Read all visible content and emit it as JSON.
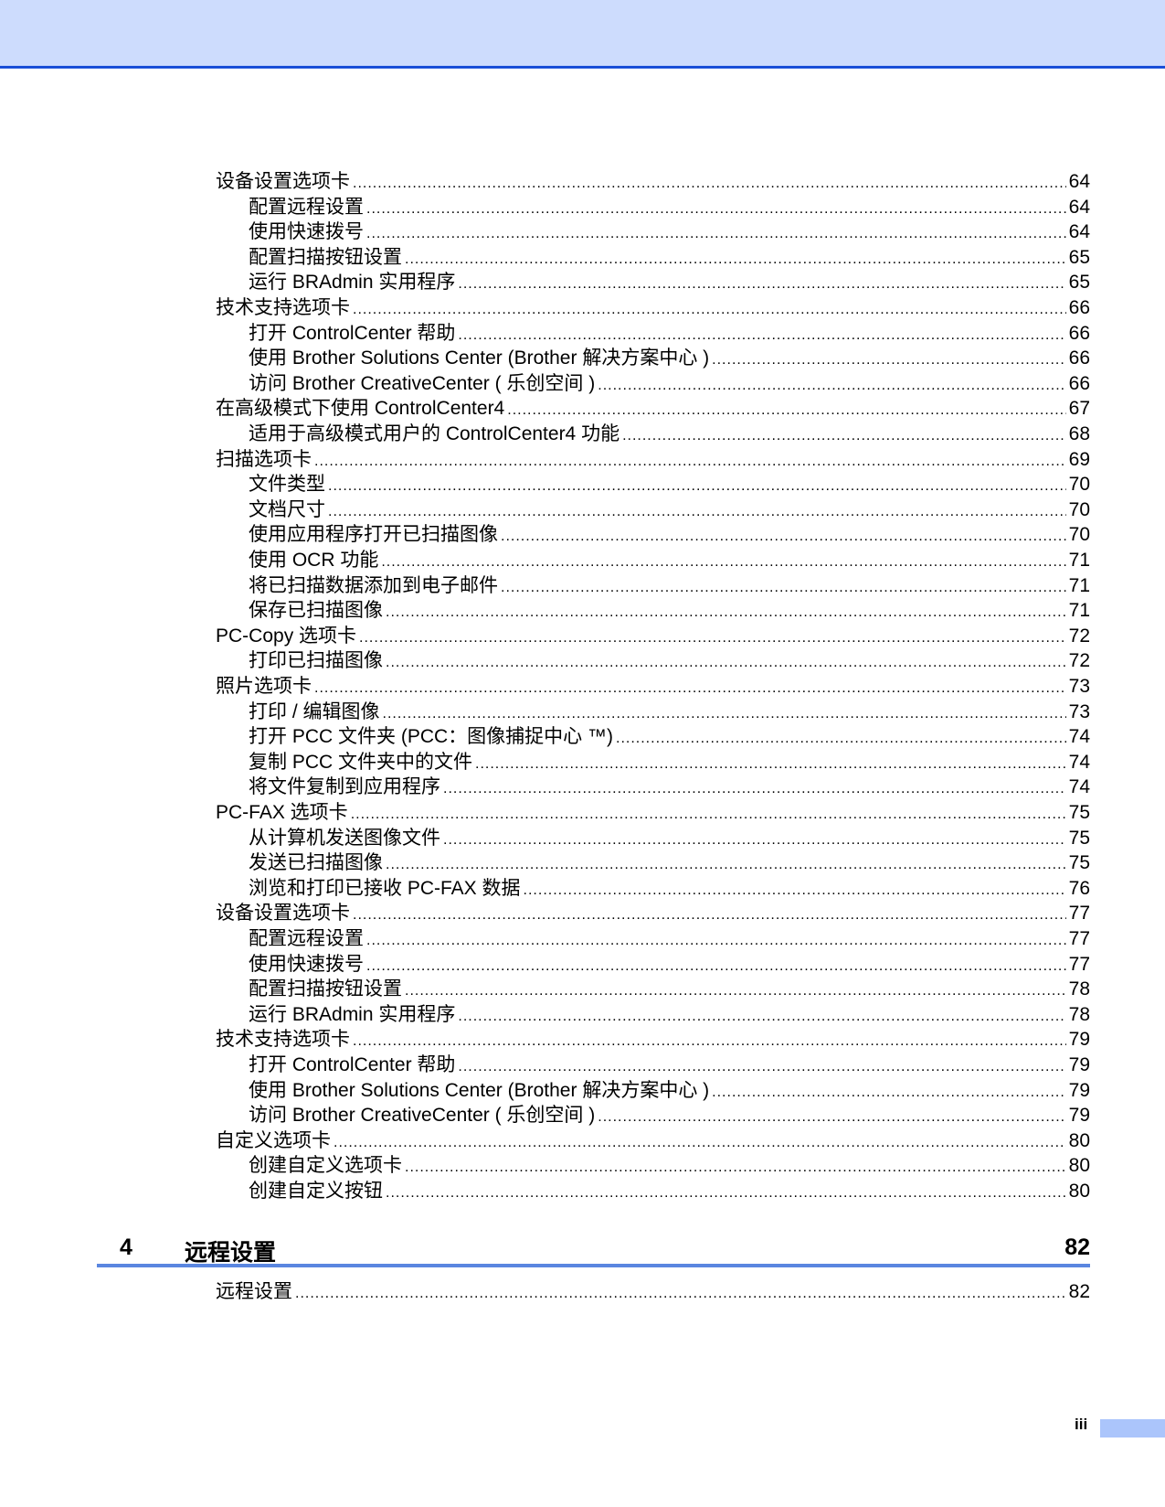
{
  "header_color": "#cddcfd",
  "accent_color": "#1a4fd8",
  "toc_entries": [
    {
      "level": 1,
      "title": "设备设置选项卡",
      "page": "64"
    },
    {
      "level": 2,
      "title": "配置远程设置",
      "page": "64"
    },
    {
      "level": 2,
      "title": "使用快速拨号",
      "page": "64"
    },
    {
      "level": 2,
      "title": "配置扫描按钮设置",
      "page": "65"
    },
    {
      "level": 2,
      "title": "运行 BRAdmin 实用程序",
      "page": "65"
    },
    {
      "level": 1,
      "title": "技术支持选项卡",
      "page": "66"
    },
    {
      "level": 2,
      "title": "打开 ControlCenter 帮助",
      "page": "66"
    },
    {
      "level": 2,
      "title": "使用 Brother Solutions Center (Brother 解决方案中心 )",
      "page": "66"
    },
    {
      "level": 2,
      "title": "访问 Brother CreativeCenter ( 乐创空间 )",
      "page": "66"
    },
    {
      "level": 1,
      "title": "在高级模式下使用 ControlCenter4",
      "page": "67"
    },
    {
      "level": 2,
      "title": "适用于高级模式用户的 ControlCenter4 功能",
      "page": "68"
    },
    {
      "level": 1,
      "title": "扫描选项卡",
      "page": "69"
    },
    {
      "level": 2,
      "title": "文件类型",
      "page": "70"
    },
    {
      "level": 2,
      "title": "文档尺寸",
      "page": "70"
    },
    {
      "level": 2,
      "title": "使用应用程序打开已扫描图像",
      "page": "70"
    },
    {
      "level": 2,
      "title": "使用 OCR 功能",
      "page": "71"
    },
    {
      "level": 2,
      "title": "将已扫描数据添加到电子邮件",
      "page": "71"
    },
    {
      "level": 2,
      "title": "保存已扫描图像",
      "page": "71"
    },
    {
      "level": 1,
      "title": "PC-Copy 选项卡",
      "page": "72"
    },
    {
      "level": 2,
      "title": "打印已扫描图像",
      "page": "72"
    },
    {
      "level": 1,
      "title": "照片选项卡",
      "page": "73"
    },
    {
      "level": 2,
      "title": "打印 / 编辑图像",
      "page": "73"
    },
    {
      "level": 2,
      "title": "打开 PCC 文件夹 (PCC：图像捕捉中心 ™)",
      "page": "74"
    },
    {
      "level": 2,
      "title": "复制 PCC 文件夹中的文件",
      "page": "74"
    },
    {
      "level": 2,
      "title": "将文件复制到应用程序",
      "page": "74"
    },
    {
      "level": 1,
      "title": "PC-FAX 选项卡",
      "page": "75"
    },
    {
      "level": 2,
      "title": "从计算机发送图像文件",
      "page": "75"
    },
    {
      "level": 2,
      "title": "发送已扫描图像",
      "page": "75"
    },
    {
      "level": 2,
      "title": "浏览和打印已接收 PC-FAX 数据",
      "page": "76"
    },
    {
      "level": 1,
      "title": "设备设置选项卡",
      "page": "77"
    },
    {
      "level": 2,
      "title": "配置远程设置",
      "page": "77"
    },
    {
      "level": 2,
      "title": "使用快速拨号",
      "page": "77"
    },
    {
      "level": 2,
      "title": "配置扫描按钮设置",
      "page": "78"
    },
    {
      "level": 2,
      "title": "运行 BRAdmin 实用程序",
      "page": "78"
    },
    {
      "level": 1,
      "title": "技术支持选项卡",
      "page": "79"
    },
    {
      "level": 2,
      "title": "打开 ControlCenter 帮助",
      "page": "79"
    },
    {
      "level": 2,
      "title": "使用 Brother Solutions Center (Brother 解决方案中心 )",
      "page": "79"
    },
    {
      "level": 2,
      "title": "访问 Brother CreativeCenter ( 乐创空间 )",
      "page": "79"
    },
    {
      "level": 1,
      "title": "自定义选项卡",
      "page": "80"
    },
    {
      "level": 2,
      "title": "创建自定义选项卡",
      "page": "80"
    },
    {
      "level": 2,
      "title": "创建自定义按钮",
      "page": "80"
    }
  ],
  "chapter": {
    "number": "4",
    "title": "远程设置",
    "page": "82",
    "entries": [
      {
        "level": 1,
        "title": "远程设置",
        "page": "82"
      }
    ]
  },
  "page_number": "iii"
}
